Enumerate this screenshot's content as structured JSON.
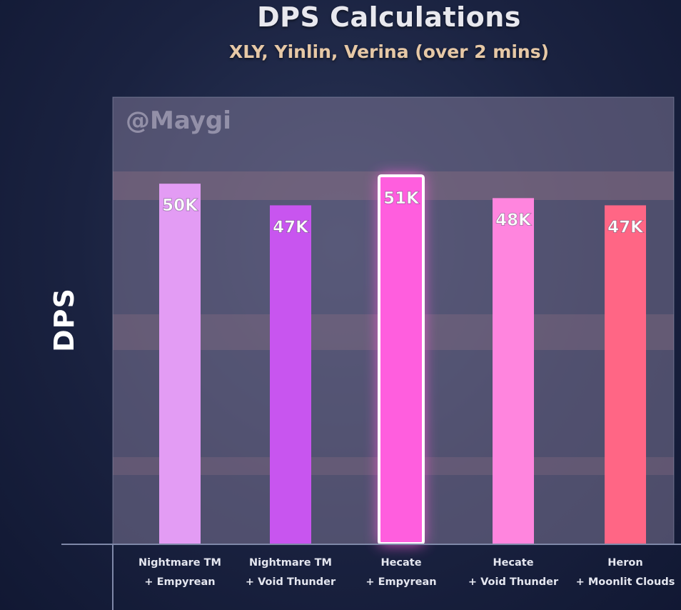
{
  "watermark": "@Maygi",
  "chart_data": {
    "type": "bar",
    "title": "DPS Calculations",
    "subtitle": "XLY, Yinlin, Verina (over 2 mins)",
    "ylabel": "DPS",
    "xlabel": "",
    "categories": [
      [
        "Nightmare TM",
        "+ Empyrean"
      ],
      [
        "Nightmare TM",
        "+ Void Thunder"
      ],
      [
        "Hecate",
        "+ Empyrean"
      ],
      [
        "Hecate",
        "+ Void Thunder"
      ],
      [
        "Heron",
        "+ Moonlit Clouds"
      ]
    ],
    "values": [
      50,
      47,
      51,
      48,
      47
    ],
    "value_labels": [
      "50K",
      "47K",
      "51K",
      "48K",
      "47K"
    ],
    "units": "K",
    "ylim": [
      0,
      62
    ],
    "grid": false,
    "legend": "none",
    "highlighted_index": 2,
    "colors": [
      "#e39cf4",
      "#c855ef",
      "#ff5ede",
      "#ff85de",
      "#ff6685"
    ]
  }
}
